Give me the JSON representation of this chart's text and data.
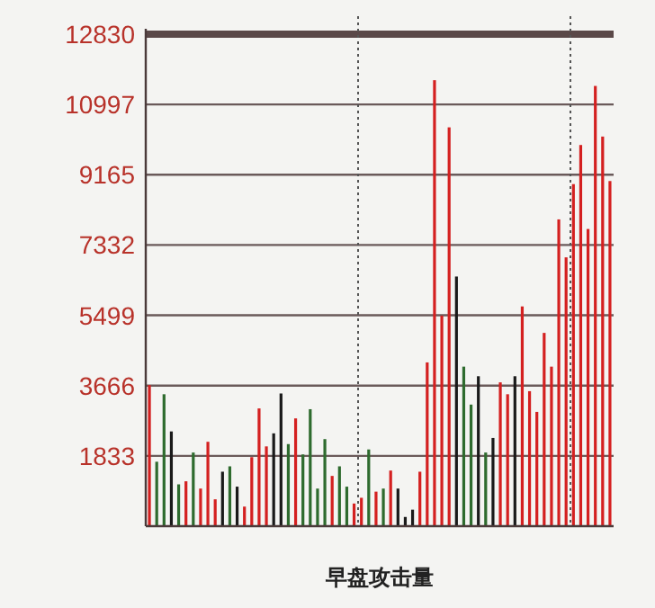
{
  "chart_data": {
    "type": "bar",
    "xlabel": "早盘攻击量",
    "categories": [
      null,
      null,
      null,
      null,
      null,
      null,
      null,
      null,
      null,
      null,
      null,
      null,
      null,
      null,
      null,
      null,
      null,
      null,
      null,
      null,
      null,
      null,
      null,
      null,
      null,
      null,
      null,
      null,
      null,
      null,
      null,
      null,
      null,
      null,
      null,
      null,
      null,
      null,
      null,
      null,
      null,
      null,
      null,
      null,
      null,
      null,
      null,
      null,
      null,
      null,
      null,
      null,
      null,
      null,
      null,
      null,
      null,
      null,
      null,
      null,
      null,
      null,
      null,
      null
    ],
    "values": [
      3680,
      1680,
      3440,
      2470,
      1090,
      1170,
      1920,
      980,
      2200,
      700,
      1420,
      1560,
      1030,
      510,
      1800,
      3070,
      2080,
      2420,
      3460,
      2140,
      2810,
      1870,
      3050,
      980,
      2270,
      1310,
      1560,
      1030,
      590,
      740,
      2000,
      900,
      980,
      1450,
      980,
      240,
      430,
      1420,
      4270,
      11630,
      5490,
      10400,
      6510,
      4160,
      3170,
      3910,
      1920,
      2300,
      3750,
      3440,
      3910,
      5730,
      3520,
      2980,
      5040,
      4160,
      8000,
      7010,
      8920,
      9940,
      7750,
      11480,
      10160,
      9000
    ],
    "colors": [
      "#d42020",
      "#2e6b2e",
      "#2e6b2e",
      "#1a1a1a",
      "#2e6b2e",
      "#d42020",
      "#2e6b2e",
      "#d42020",
      "#d42020",
      "#d42020",
      "#1a1a1a",
      "#2e6b2e",
      "#1a1a1a",
      "#d42020",
      "#d42020",
      "#d42020",
      "#d42020",
      "#1a1a1a",
      "#1a1a1a",
      "#2e6b2e",
      "#d42020",
      "#2e6b2e",
      "#2e6b2e",
      "#2e6b2e",
      "#2e6b2e",
      "#d42020",
      "#2e6b2e",
      "#2e6b2e",
      "#d42020",
      "#d42020",
      "#2e6b2e",
      "#d42020",
      "#2e6b2e",
      "#d42020",
      "#1a1a1a",
      "#1a1a1a",
      "#1a1a1a",
      "#d42020",
      "#d42020",
      "#d42020",
      "#d42020",
      "#d42020",
      "#1a1a1a",
      "#2e6b2e",
      "#2e6b2e",
      "#1a1a1a",
      "#2e6b2e",
      "#1a1a1a",
      "#d42020",
      "#d42020",
      "#1a1a1a",
      "#d42020",
      "#d42020",
      "#d42020",
      "#d42020",
      "#d42020",
      "#d42020",
      "#d42020",
      "#d42020",
      "#d42020",
      "#d42020",
      "#d42020",
      "#d42020",
      "#d42020"
    ],
    "ylim": [
      0,
      12830
    ],
    "yticks": [
      1833,
      3666,
      5499,
      7332,
      9165,
      10997,
      12830
    ],
    "grid": "y",
    "ref_lines": [
      {
        "axis": "y",
        "value": 12830,
        "color": "#5a4848",
        "line_style": "solid"
      }
    ]
  }
}
